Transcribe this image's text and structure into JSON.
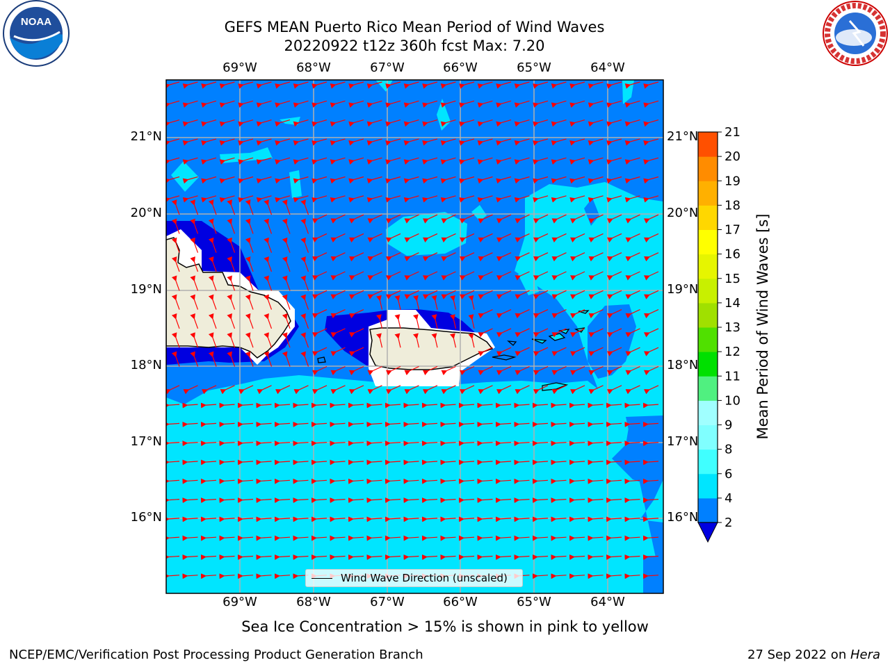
{
  "title_line1": "GEFS MEAN Puerto Rico Mean Period of Wind Waves",
  "title_line2": "20220922 t12z 360h fcst   Max: 7.20",
  "lon_ticks": [
    "69°W",
    "68°W",
    "67°W",
    "66°W",
    "65°W",
    "64°W"
  ],
  "lat_ticks": [
    "21°N",
    "20°N",
    "19°N",
    "18°N",
    "17°N",
    "16°N"
  ],
  "legend_label": "Wind Wave Direction (unscaled)",
  "colorbar": {
    "label": "Mean Period of Wind Waves [s]",
    "ticks": [
      "2",
      "4",
      "6",
      "8",
      "9",
      "10",
      "11",
      "12",
      "13",
      "14",
      "15",
      "16",
      "17",
      "18",
      "19",
      "20",
      "21"
    ],
    "colors": [
      "#0080ff",
      "#00e5ff",
      "#40ffff",
      "#80ffff",
      "#a0ffff",
      "#50f080",
      "#00e000",
      "#50e000",
      "#a0e000",
      "#c8f000",
      "#e6f500",
      "#ffff00",
      "#ffd700",
      "#ffb000",
      "#ff8c00",
      "#ff5000",
      "#ff2000",
      "#ff0000"
    ],
    "under_color": "#0000e0"
  },
  "subtitle": "Sea Ice Concentration > 15% is shown in pink to yellow",
  "footer_left": "NCEP/EMC/Verification Post Processing Product Generation Branch",
  "footer_date": "27 Sep 2022 on ",
  "footer_machine": "Hera",
  "logos": {
    "left": "noaa-logo",
    "left_text": "NOAA",
    "right": "nws-logo",
    "right_text": "NATIONAL WEATHER SERVICE"
  }
}
